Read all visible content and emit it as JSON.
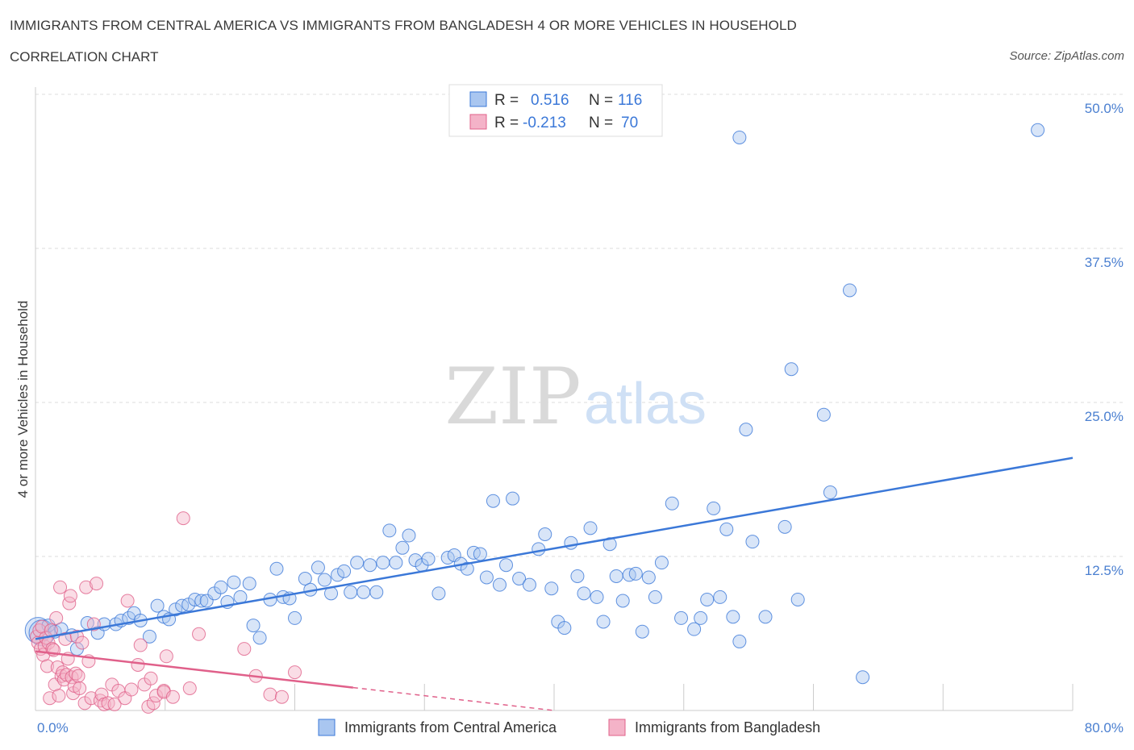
{
  "title": "IMMIGRANTS FROM CENTRAL AMERICA VS IMMIGRANTS FROM BANGLADESH 4 OR MORE VEHICLES IN HOUSEHOLD",
  "subtitle": "CORRELATION CHART",
  "source": "Source: ZipAtlas.com",
  "watermark": {
    "zip": "ZIP",
    "atlas": "atlas"
  },
  "colors": {
    "blue": "#3b78d8",
    "blue_fill": "#a9c6f0",
    "pink": "#e0608a",
    "pink_fill": "#f4b3c8",
    "grid": "#dddddd",
    "tick": "#4a7fd0"
  },
  "legend": {
    "rows": [
      {
        "r_label": "R =",
        "r_value": "0.516",
        "n_label": "N =",
        "n_value": "116"
      },
      {
        "r_label": "R =",
        "r_value": "-0.213",
        "n_label": "N =",
        "n_value": "70"
      }
    ]
  },
  "bottom_legend": {
    "series1": "Immigrants from Central America",
    "series2": "Immigrants from Bangladesh"
  },
  "chart_data": {
    "type": "scatter",
    "title": "IMMIGRANTS FROM CENTRAL AMERICA VS IMMIGRANTS FROM BANGLADESH 4 OR MORE VEHICLES IN HOUSEHOLD",
    "xlabel": "",
    "ylabel": "4 or more Vehicles in Household",
    "xlim": [
      0,
      80
    ],
    "ylim": [
      0,
      50
    ],
    "x_tick_labels": [
      {
        "value": 0,
        "label": "0.0%"
      },
      {
        "value": 80,
        "label": "80.0%"
      }
    ],
    "y_tick_labels": [
      {
        "value": 12.5,
        "label": "12.5%"
      },
      {
        "value": 25,
        "label": "25.0%"
      },
      {
        "value": 37.5,
        "label": "37.5%"
      },
      {
        "value": 50,
        "label": "50.0%"
      }
    ],
    "series": [
      {
        "name": "Immigrants from Central America",
        "R": 0.516,
        "N": 116,
        "trend": {
          "x": [
            0,
            80
          ],
          "y": [
            5.8,
            20.5
          ],
          "dashed_after": null
        },
        "points": [
          [
            0.2,
            6.5
          ],
          [
            0.5,
            6.3
          ],
          [
            1.0,
            6.9
          ],
          [
            1.5,
            6.4
          ],
          [
            2.0,
            6.6
          ],
          [
            2.8,
            6.1
          ],
          [
            3.2,
            5.0
          ],
          [
            4.0,
            7.1
          ],
          [
            4.8,
            6.3
          ],
          [
            5.3,
            7.0
          ],
          [
            6.2,
            7.0
          ],
          [
            6.6,
            7.3
          ],
          [
            7.2,
            7.5
          ],
          [
            7.6,
            7.9
          ],
          [
            8.1,
            7.3
          ],
          [
            8.8,
            6.0
          ],
          [
            9.4,
            8.5
          ],
          [
            9.9,
            7.6
          ],
          [
            10.3,
            7.4
          ],
          [
            10.8,
            8.2
          ],
          [
            11.3,
            8.5
          ],
          [
            11.8,
            8.6
          ],
          [
            12.3,
            9.0
          ],
          [
            12.8,
            8.9
          ],
          [
            13.2,
            8.9
          ],
          [
            13.8,
            9.5
          ],
          [
            14.3,
            10.0
          ],
          [
            14.8,
            8.8
          ],
          [
            15.3,
            10.4
          ],
          [
            15.8,
            9.2
          ],
          [
            16.5,
            10.3
          ],
          [
            16.8,
            6.9
          ],
          [
            17.3,
            5.9
          ],
          [
            18.1,
            9.0
          ],
          [
            18.6,
            11.5
          ],
          [
            19.1,
            9.2
          ],
          [
            19.6,
            9.1
          ],
          [
            20.0,
            7.5
          ],
          [
            20.8,
            10.7
          ],
          [
            21.2,
            9.8
          ],
          [
            21.8,
            11.6
          ],
          [
            22.3,
            10.6
          ],
          [
            22.8,
            9.5
          ],
          [
            23.3,
            11.0
          ],
          [
            23.8,
            11.3
          ],
          [
            24.3,
            9.6
          ],
          [
            24.8,
            12.0
          ],
          [
            25.3,
            9.6
          ],
          [
            25.8,
            11.8
          ],
          [
            26.3,
            9.6
          ],
          [
            26.8,
            12.0
          ],
          [
            27.3,
            14.6
          ],
          [
            27.8,
            12.0
          ],
          [
            28.3,
            13.2
          ],
          [
            28.8,
            14.2
          ],
          [
            29.3,
            12.2
          ],
          [
            29.8,
            11.8
          ],
          [
            30.3,
            12.3
          ],
          [
            31.1,
            9.5
          ],
          [
            31.8,
            12.4
          ],
          [
            32.3,
            12.6
          ],
          [
            32.8,
            11.9
          ],
          [
            33.3,
            11.5
          ],
          [
            33.8,
            12.8
          ],
          [
            34.3,
            12.7
          ],
          [
            34.8,
            10.8
          ],
          [
            35.3,
            17.0
          ],
          [
            35.8,
            10.2
          ],
          [
            36.3,
            11.8
          ],
          [
            36.8,
            17.2
          ],
          [
            37.3,
            10.7
          ],
          [
            38.1,
            10.2
          ],
          [
            38.8,
            13.1
          ],
          [
            39.3,
            14.3
          ],
          [
            39.8,
            9.9
          ],
          [
            40.3,
            7.2
          ],
          [
            40.8,
            6.7
          ],
          [
            41.3,
            13.6
          ],
          [
            41.8,
            10.9
          ],
          [
            42.3,
            9.5
          ],
          [
            42.8,
            14.8
          ],
          [
            43.3,
            9.2
          ],
          [
            43.8,
            7.2
          ],
          [
            44.3,
            13.5
          ],
          [
            44.8,
            10.9
          ],
          [
            45.3,
            8.9
          ],
          [
            45.8,
            11.0
          ],
          [
            46.3,
            11.1
          ],
          [
            46.8,
            6.4
          ],
          [
            47.3,
            10.8
          ],
          [
            47.8,
            9.2
          ],
          [
            48.3,
            12.0
          ],
          [
            49.1,
            16.8
          ],
          [
            49.8,
            7.5
          ],
          [
            50.8,
            6.6
          ],
          [
            51.3,
            7.5
          ],
          [
            51.8,
            9.0
          ],
          [
            52.3,
            16.4
          ],
          [
            52.8,
            9.2
          ],
          [
            53.3,
            14.7
          ],
          [
            53.8,
            7.6
          ],
          [
            54.3,
            46.5
          ],
          [
            54.3,
            5.6
          ],
          [
            54.8,
            22.8
          ],
          [
            55.3,
            13.7
          ],
          [
            56.3,
            7.6
          ],
          [
            57.8,
            14.9
          ],
          [
            58.3,
            27.7
          ],
          [
            58.8,
            9.0
          ],
          [
            61.3,
            17.7
          ],
          [
            62.8,
            34.1
          ],
          [
            63.8,
            2.7
          ],
          [
            77.3,
            47.1
          ],
          [
            60.8,
            24.0
          ]
        ]
      },
      {
        "name": "Immigrants from Bangladesh",
        "R": -0.213,
        "N": 70,
        "trend": {
          "x": [
            0,
            40
          ],
          "y": [
            4.8,
            0.0
          ],
          "solid_until": 24.5
        },
        "points": [
          [
            0.1,
            6.0
          ],
          [
            0.2,
            5.5
          ],
          [
            0.3,
            6.5
          ],
          [
            0.4,
            5.0
          ],
          [
            0.5,
            6.8
          ],
          [
            0.6,
            4.5
          ],
          [
            0.7,
            5.2
          ],
          [
            0.8,
            5.9
          ],
          [
            0.9,
            3.6
          ],
          [
            1.0,
            5.5
          ],
          [
            1.1,
            1.0
          ],
          [
            1.2,
            6.5
          ],
          [
            1.3,
            5.0
          ],
          [
            1.4,
            4.9
          ],
          [
            1.5,
            2.1
          ],
          [
            1.6,
            7.5
          ],
          [
            1.7,
            3.5
          ],
          [
            1.8,
            1.2
          ],
          [
            1.9,
            10.0
          ],
          [
            2.0,
            2.8
          ],
          [
            2.1,
            3.1
          ],
          [
            2.2,
            2.5
          ],
          [
            2.3,
            5.8
          ],
          [
            2.4,
            2.9
          ],
          [
            2.5,
            4.2
          ],
          [
            2.6,
            8.7
          ],
          [
            2.7,
            9.3
          ],
          [
            2.8,
            2.7
          ],
          [
            2.9,
            1.4
          ],
          [
            3.0,
            2.0
          ],
          [
            3.1,
            3.0
          ],
          [
            3.2,
            6.0
          ],
          [
            3.3,
            2.8
          ],
          [
            3.4,
            1.8
          ],
          [
            3.6,
            5.5
          ],
          [
            3.8,
            0.6
          ],
          [
            3.9,
            10.0
          ],
          [
            4.1,
            4.0
          ],
          [
            4.3,
            1.0
          ],
          [
            4.5,
            7.0
          ],
          [
            4.7,
            10.3
          ],
          [
            5.0,
            0.8
          ],
          [
            5.1,
            1.3
          ],
          [
            5.3,
            0.5
          ],
          [
            5.6,
            0.6
          ],
          [
            5.9,
            2.1
          ],
          [
            6.1,
            0.5
          ],
          [
            6.4,
            1.6
          ],
          [
            6.9,
            1.0
          ],
          [
            7.1,
            8.9
          ],
          [
            7.4,
            1.7
          ],
          [
            7.9,
            3.7
          ],
          [
            8.1,
            5.3
          ],
          [
            8.4,
            2.1
          ],
          [
            8.7,
            0.3
          ],
          [
            8.9,
            2.6
          ],
          [
            9.1,
            0.6
          ],
          [
            9.3,
            1.2
          ],
          [
            9.9,
            1.6
          ],
          [
            9.9,
            1.5
          ],
          [
            10.1,
            4.4
          ],
          [
            10.6,
            1.1
          ],
          [
            11.4,
            15.6
          ],
          [
            11.9,
            1.8
          ],
          [
            16.1,
            5.0
          ],
          [
            17.0,
            2.8
          ],
          [
            18.1,
            1.3
          ],
          [
            19.0,
            1.1
          ],
          [
            20.0,
            3.1
          ],
          [
            12.6,
            6.2
          ]
        ]
      }
    ]
  }
}
